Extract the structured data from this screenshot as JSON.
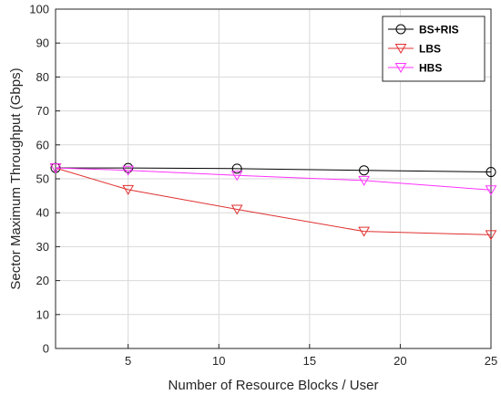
{
  "chart_data": {
    "type": "line",
    "title": "",
    "xlabel": "Number of Resource Blocks / User",
    "ylabel": "Sector Maximum Throughput (Gbps)",
    "xlim": [
      1,
      25
    ],
    "ylim": [
      0,
      100
    ],
    "xticks": [
      5,
      10,
      15,
      20,
      25
    ],
    "yticks": [
      0,
      10,
      20,
      30,
      40,
      50,
      60,
      70,
      80,
      90,
      100
    ],
    "grid": true,
    "legend_position": "top-right",
    "x": [
      1,
      5,
      11,
      18,
      25
    ],
    "series": [
      {
        "name": "BS+RIS",
        "values": [
          53.2,
          53.2,
          53.0,
          52.5,
          52.0
        ],
        "color": "#000000",
        "marker": "circle"
      },
      {
        "name": "LBS",
        "values": [
          53.2,
          46.8,
          41.0,
          34.5,
          33.5
        ],
        "color": "#e03030",
        "marker": "triangle-down"
      },
      {
        "name": "HBS",
        "values": [
          53.2,
          52.5,
          51.0,
          49.5,
          46.7
        ],
        "color": "#ff33ff",
        "marker": "triangle-down"
      }
    ]
  }
}
